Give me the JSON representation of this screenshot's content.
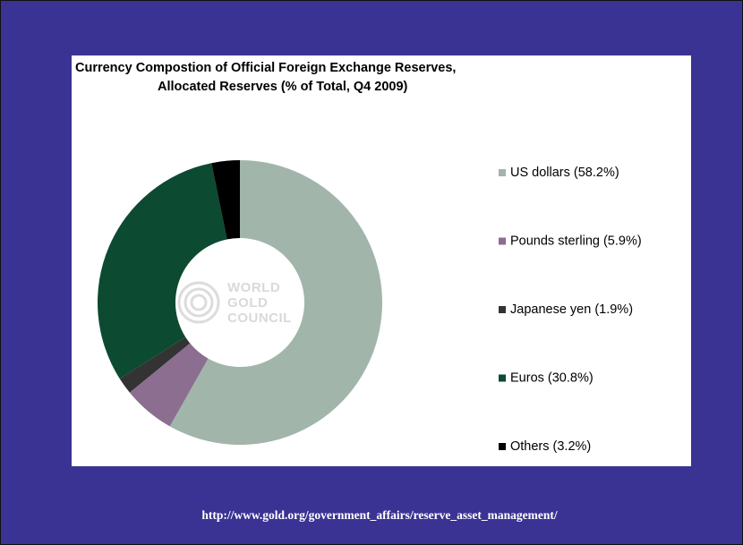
{
  "chart_data": {
    "type": "donut",
    "title": "Currency Compostion of Official Foreign Exchange Reserves,",
    "subtitle": "Allocated Reserves (% of Total, Q4 2009)",
    "categories": [
      "US dollars (58.2%)",
      "Pounds sterling (5.9%)",
      "Japanese yen (1.9%)",
      "Euros  (30.8%)",
      "Others (3.2%)"
    ],
    "values": [
      58.2,
      5.9,
      1.9,
      30.8,
      3.2
    ],
    "colors": [
      "#a1b5ab",
      "#8b6e90",
      "#333333",
      "#0c4a31",
      "#000000"
    ],
    "legend": "right"
  },
  "watermark": [
    "WORLD",
    "GOLD",
    "COUNCIL"
  ],
  "footer": "http://www.gold.org/government_affairs/reserve_asset_management/"
}
